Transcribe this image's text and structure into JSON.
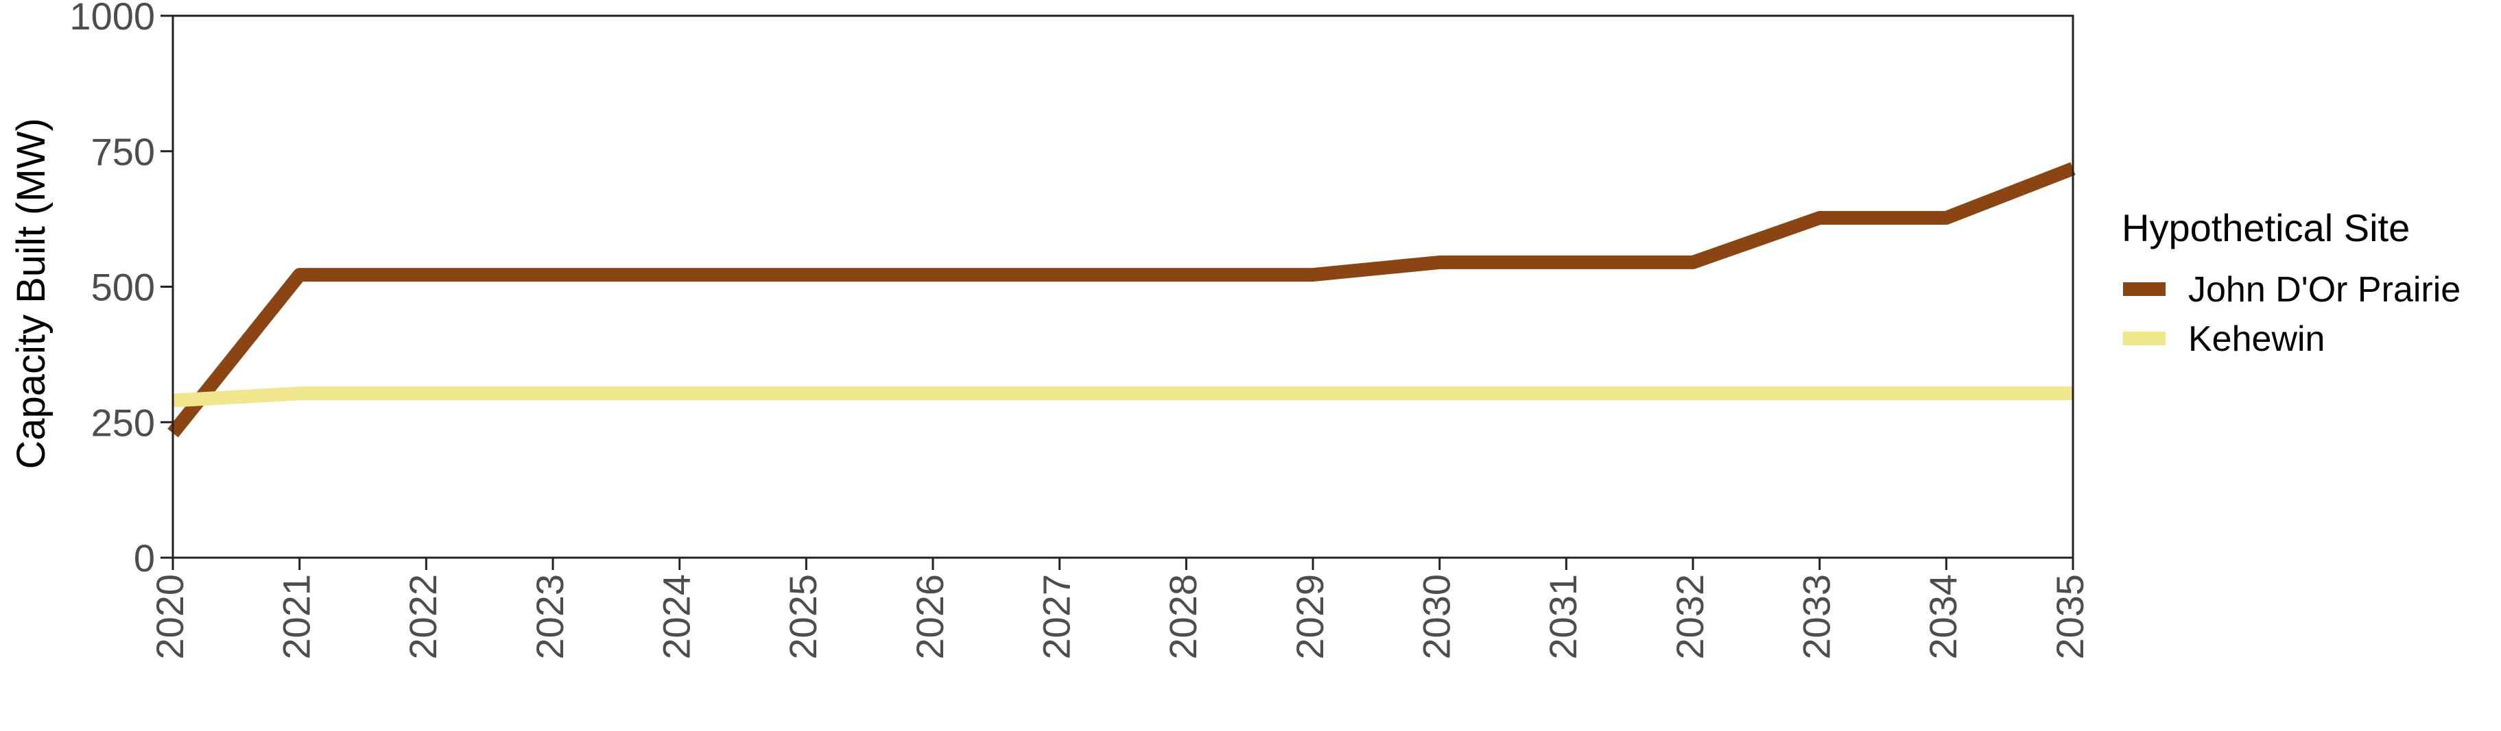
{
  "chart_data": {
    "type": "line",
    "title": "",
    "xlabel": "",
    "ylabel": "Capacity Built (MW)",
    "x": [
      2020,
      2021,
      2022,
      2023,
      2024,
      2025,
      2026,
      2027,
      2028,
      2029,
      2030,
      2031,
      2032,
      2033,
      2034,
      2035
    ],
    "xlim": [
      2020,
      2035
    ],
    "ylim": [
      0,
      1000
    ],
    "x_ticks": [
      "2020",
      "2021",
      "2022",
      "2023",
      "2024",
      "2025",
      "2026",
      "2027",
      "2028",
      "2029",
      "2030",
      "2031",
      "2032",
      "2033",
      "2034",
      "2035"
    ],
    "y_ticks": [
      "0",
      "250",
      "500",
      "750",
      "1000"
    ],
    "y_tick_values": [
      0,
      250,
      500,
      750,
      1000
    ],
    "grid": false,
    "legend": {
      "title": "Hypothetical Site",
      "placement": "right"
    },
    "series": [
      {
        "name": "John D'Or Prairie",
        "color": "#8B4513",
        "values": [
          230,
          522,
          522,
          522,
          522,
          522,
          522,
          522,
          522,
          522,
          545,
          545,
          545,
          627,
          627,
          718
        ]
      },
      {
        "name": "Kehewin",
        "color": "#F0E68C",
        "values": [
          290,
          303,
          303,
          303,
          303,
          303,
          303,
          303,
          303,
          303,
          303,
          303,
          303,
          303,
          303,
          303
        ]
      }
    ]
  }
}
